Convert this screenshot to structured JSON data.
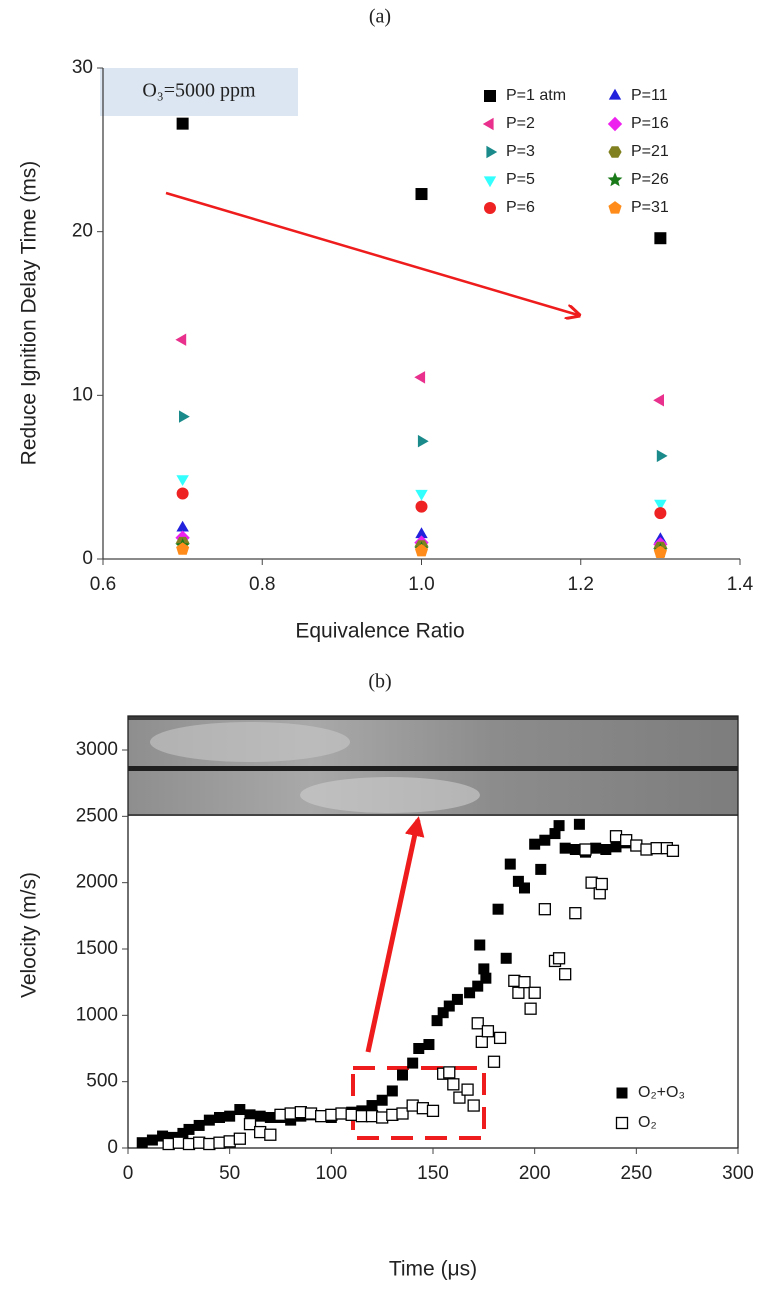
{
  "chart_data": [
    {
      "type": "scatter",
      "title": "(a)",
      "annotation": "O₃=5000 ppm",
      "x_label": "Equivalence Ratio",
      "y_label": "Reduce Ignition Delay Time (ms)",
      "x": [
        0.7,
        1.0,
        1.3
      ],
      "xlim": [
        0.6,
        1.4
      ],
      "xticks": [
        0.6,
        0.8,
        {
          "value": 1,
          "label": "1.0"
        },
        1.2,
        1.4
      ],
      "ylim": [
        0,
        30
      ],
      "yticks": [
        0,
        10,
        20,
        30
      ],
      "series": [
        {
          "name": "P=1 atm",
          "color": "#000000",
          "marker": "square",
          "values": [
            26.6,
            22.3,
            19.6
          ]
        },
        {
          "name": "P=2",
          "color": "#e8308c",
          "marker": "triangle-left",
          "values": [
            13.4,
            11.1,
            9.7
          ]
        },
        {
          "name": "P=3",
          "color": "#1a8a8a",
          "marker": "triangle-right",
          "values": [
            8.7,
            7.2,
            6.3
          ]
        },
        {
          "name": "P=5",
          "color": "#33ffff",
          "marker": "triangle-down",
          "values": [
            4.9,
            4.0,
            3.4
          ]
        },
        {
          "name": "P=6",
          "color": "#ee2222",
          "marker": "circle",
          "values": [
            4.0,
            3.2,
            2.8
          ]
        },
        {
          "name": "P=11",
          "color": "#2222dd",
          "marker": "triangle-up",
          "values": [
            1.9,
            1.5,
            1.2
          ]
        },
        {
          "name": "P=16",
          "color": "#ee22ee",
          "marker": "diamond",
          "values": [
            1.3,
            1.0,
            0.9
          ]
        },
        {
          "name": "P=21",
          "color": "#808020",
          "marker": "hexagon",
          "values": [
            1.0,
            0.8,
            0.7
          ]
        },
        {
          "name": "P=26",
          "color": "#1a7a1a",
          "marker": "star",
          "values": [
            0.8,
            0.6,
            0.5
          ]
        },
        {
          "name": "P=31",
          "color": "#ff8c1a",
          "marker": "pentagon",
          "values": [
            0.6,
            0.5,
            0.4
          ]
        }
      ]
    },
    {
      "type": "scatter",
      "title": "(b)",
      "x_label": "Time (μs)",
      "y_label": "Velocity (m/s)",
      "xlim": [
        0,
        300
      ],
      "xticks": [
        0,
        50,
        100,
        150,
        200,
        250,
        300
      ],
      "ylim": [
        0,
        3000
      ],
      "yticks": [
        0,
        500,
        1000,
        1500,
        2000,
        2500,
        3000
      ],
      "series": [
        {
          "name": "O₂+O₃",
          "color": "#000000",
          "marker": "square",
          "x": [
            7,
            12,
            17,
            22,
            27,
            30,
            35,
            40,
            45,
            50,
            55,
            60,
            65,
            70,
            75,
            80,
            85,
            90,
            95,
            100,
            105,
            110,
            115,
            120,
            125,
            130,
            135,
            140,
            143,
            148,
            152,
            155,
            158,
            162,
            168,
            172,
            175,
            173,
            176,
            182,
            186,
            188,
            192,
            195,
            200,
            203,
            205,
            210,
            212,
            215,
            220,
            222,
            225,
            230,
            235,
            240,
            245,
            250
          ],
          "values": [
            40,
            60,
            90,
            80,
            110,
            140,
            170,
            210,
            230,
            240,
            290,
            250,
            240,
            230,
            230,
            210,
            240,
            250,
            240,
            230,
            260,
            270,
            280,
            320,
            360,
            430,
            550,
            640,
            750,
            780,
            960,
            1020,
            1070,
            1120,
            1170,
            1220,
            1350,
            1530,
            1280,
            1800,
            1430,
            2140,
            2010,
            1960,
            2290,
            2100,
            2320,
            2370,
            2430,
            2260,
            2250,
            2440,
            2230,
            2260,
            2250,
            2270,
            2300,
            2280
          ]
        },
        {
          "name": "O₂",
          "color": "#000000",
          "marker": "square-open",
          "x": [
            20,
            25,
            30,
            35,
            40,
            45,
            50,
            55,
            60,
            65,
            70,
            75,
            80,
            85,
            90,
            95,
            100,
            105,
            110,
            115,
            120,
            125,
            130,
            135,
            140,
            145,
            150,
            155,
            158,
            160,
            163,
            167,
            170,
            172,
            174,
            177,
            180,
            183,
            190,
            192,
            195,
            198,
            200,
            205,
            210,
            212,
            215,
            220,
            225,
            228,
            232,
            233,
            240,
            245,
            250,
            255,
            260,
            265,
            268
          ],
          "values": [
            30,
            40,
            30,
            40,
            30,
            40,
            50,
            70,
            180,
            120,
            100,
            250,
            260,
            270,
            260,
            240,
            250,
            260,
            250,
            240,
            240,
            230,
            250,
            260,
            320,
            300,
            280,
            560,
            570,
            480,
            380,
            440,
            320,
            940,
            800,
            880,
            650,
            830,
            1260,
            1170,
            1250,
            1050,
            1170,
            1800,
            1410,
            1430,
            1310,
            1770,
            2250,
            2000,
            1920,
            1990,
            2350,
            2320,
            2280,
            2250,
            2260,
            2260,
            2240
          ]
        }
      ]
    }
  ]
}
